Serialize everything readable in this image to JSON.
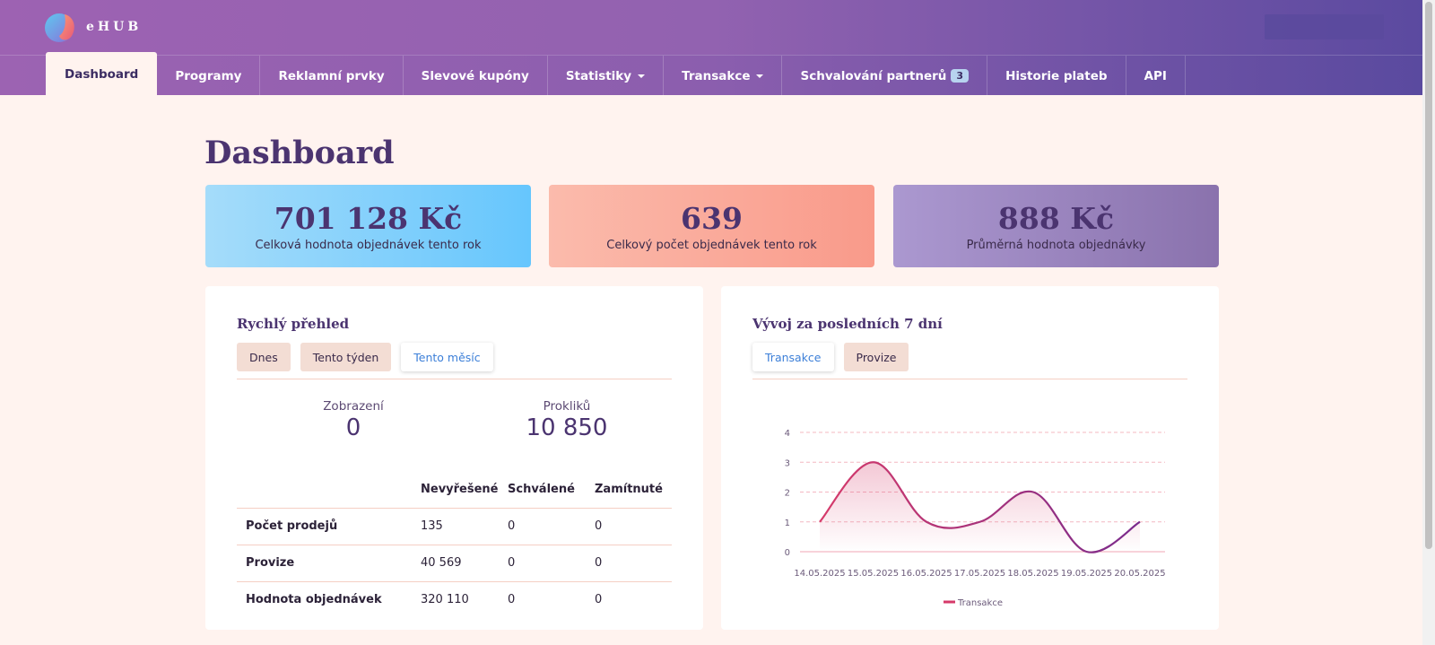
{
  "app": {
    "logo_text": "eHUB"
  },
  "nav": {
    "items": [
      {
        "label": "Dashboard",
        "active": true
      },
      {
        "label": "Programy"
      },
      {
        "label": "Reklamní prvky"
      },
      {
        "label": "Slevové kupóny"
      },
      {
        "label": "Statistiky",
        "dropdown": true
      },
      {
        "label": "Transakce",
        "dropdown": true
      },
      {
        "label": "Schvalování partnerů",
        "badge": "3"
      },
      {
        "label": "Historie plateb"
      },
      {
        "label": "API"
      }
    ]
  },
  "page": {
    "title": "Dashboard"
  },
  "stats": [
    {
      "value": "701 128 Kč",
      "label": "Celková hodnota objednávek tento rok"
    },
    {
      "value": "639",
      "label": "Celkový počet objednávek tento rok"
    },
    {
      "value": "888 Kč",
      "label": "Průměrná hodnota objednávky"
    }
  ],
  "overview": {
    "title": "Rychlý přehled",
    "periods": [
      "Dnes",
      "Tento týden",
      "Tento měsíc"
    ],
    "selected_period": "Tento měsíc",
    "metrics": [
      {
        "label": "Zobrazení",
        "value": "0"
      },
      {
        "label": "Prokliků",
        "value": "10 850"
      }
    ],
    "table": {
      "columns": [
        "",
        "Nevyřešené",
        "Schválené",
        "Zamítnuté"
      ],
      "rows": [
        [
          "Počet prodejů",
          "135",
          "0",
          "0"
        ],
        [
          "Provize",
          "40 569",
          "0",
          "0"
        ],
        [
          "Hodnota objednávek",
          "320 110",
          "0",
          "0"
        ]
      ]
    }
  },
  "trend": {
    "title": "Vývoj za posledních 7 dní",
    "tabs": [
      "Transakce",
      "Provize"
    ],
    "selected_tab": "Transakce"
  },
  "chart_data": {
    "type": "line",
    "x": [
      "14.05.2025",
      "15.05.2025",
      "16.05.2025",
      "17.05.2025",
      "18.05.2025",
      "19.05.2025",
      "20.05.2025"
    ],
    "series": [
      {
        "name": "Transakce",
        "values": [
          1,
          3,
          1,
          1,
          2,
          0,
          1
        ]
      }
    ],
    "ylim": [
      0,
      4
    ],
    "yticks": [
      0,
      1,
      2,
      3,
      4
    ],
    "grid": true,
    "legend": "bottom",
    "colors": {
      "line_start": "#d63a6a",
      "line_end": "#7a2b8c"
    }
  }
}
